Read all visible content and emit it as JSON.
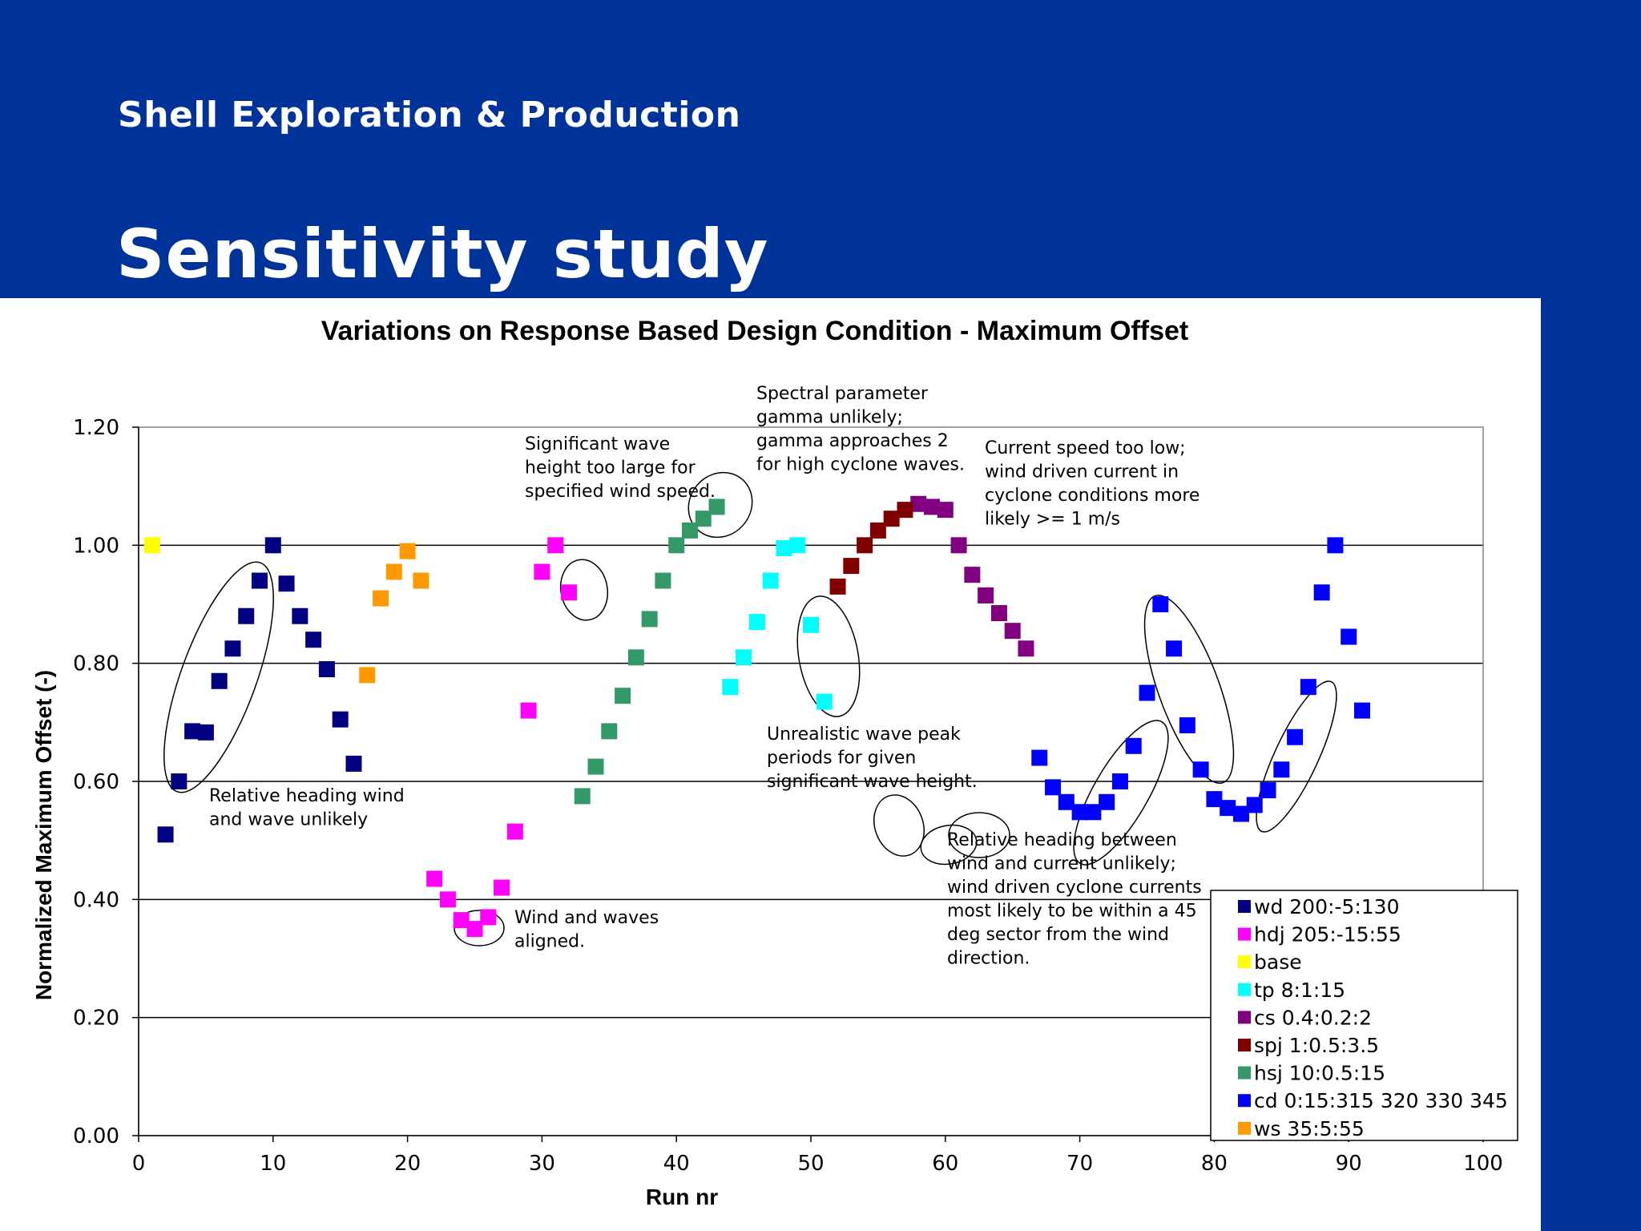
{
  "header": {
    "brand": "Shell Exploration & Production",
    "title": "Sensitivity study"
  },
  "chart_data": {
    "type": "scatter",
    "title": "Variations on Response Based Design Condition - Maximum Offset",
    "xlabel": "Run nr",
    "ylabel": "Normalized Maximum Offset (-)",
    "xlim": [
      0,
      100
    ],
    "ylim": [
      0,
      1.2
    ],
    "x_ticks": [
      "0",
      "10",
      "20",
      "30",
      "40",
      "50",
      "60",
      "70",
      "80",
      "90",
      "100"
    ],
    "y_ticks": [
      "0.00",
      "0.20",
      "0.40",
      "0.60",
      "0.80",
      "1.00",
      "1.20"
    ],
    "grid": "horizontal",
    "legend_position": "bottom-right",
    "series": [
      {
        "name": "wd 200:-5:130",
        "color": "#000080",
        "points": [
          [
            2,
            0.51
          ],
          [
            3,
            0.6
          ],
          [
            4,
            0.685
          ],
          [
            5,
            0.683
          ],
          [
            6,
            0.77
          ],
          [
            7,
            0.825
          ],
          [
            8,
            0.88
          ],
          [
            9,
            0.94
          ],
          [
            10,
            1.0
          ],
          [
            11,
            0.935
          ],
          [
            12,
            0.88
          ],
          [
            13,
            0.84
          ],
          [
            14,
            0.79
          ],
          [
            15,
            0.705
          ],
          [
            16,
            0.63
          ]
        ]
      },
      {
        "name": "hdj 205:-15:55",
        "color": "#ff00ff",
        "points": [
          [
            22,
            0.435
          ],
          [
            23,
            0.4
          ],
          [
            24,
            0.365
          ],
          [
            25,
            0.35
          ],
          [
            26,
            0.37
          ],
          [
            27,
            0.42
          ],
          [
            28,
            0.515
          ],
          [
            29,
            0.72
          ],
          [
            30,
            0.955
          ],
          [
            31,
            1.0
          ],
          [
            32,
            0.92
          ]
        ]
      },
      {
        "name": "base",
        "color": "#ffff00",
        "points": [
          [
            1,
            1.0
          ]
        ]
      },
      {
        "name": "tp 8:1:15",
        "color": "#00ffff",
        "points": [
          [
            44,
            0.76
          ],
          [
            45,
            0.81
          ],
          [
            46,
            0.87
          ],
          [
            47,
            0.94
          ],
          [
            48,
            0.995
          ],
          [
            49,
            1.0
          ],
          [
            50,
            0.865
          ],
          [
            51,
            0.735
          ]
        ]
      },
      {
        "name": "cs 0.4:0.2:2",
        "color": "#800080",
        "points": [
          [
            58,
            1.07
          ],
          [
            59,
            1.065
          ],
          [
            60,
            1.06
          ],
          [
            61,
            1.0
          ],
          [
            62,
            0.95
          ],
          [
            63,
            0.915
          ],
          [
            64,
            0.885
          ],
          [
            65,
            0.855
          ],
          [
            66,
            0.825
          ]
        ]
      },
      {
        "name": "spj 1:0.5:3.5",
        "color": "#800000",
        "points": [
          [
            52,
            0.93
          ],
          [
            53,
            0.965
          ],
          [
            54,
            1.0
          ],
          [
            55,
            1.025
          ],
          [
            56,
            1.045
          ],
          [
            57,
            1.06
          ]
        ]
      },
      {
        "name": "hsj 10:0.5:15",
        "color": "#339966",
        "points": [
          [
            33,
            0.575
          ],
          [
            34,
            0.625
          ],
          [
            35,
            0.685
          ],
          [
            36,
            0.745
          ],
          [
            37,
            0.81
          ],
          [
            38,
            0.875
          ],
          [
            39,
            0.94
          ],
          [
            40,
            1.0
          ],
          [
            41,
            1.025
          ],
          [
            42,
            1.045
          ],
          [
            43,
            1.065
          ]
        ]
      },
      {
        "name": "cd 0:15:315 320 330 345",
        "color": "#0000ff",
        "points": [
          [
            67,
            0.64
          ],
          [
            68,
            0.59
          ],
          [
            69,
            0.565
          ],
          [
            70,
            0.548
          ],
          [
            71,
            0.548
          ],
          [
            72,
            0.565
          ],
          [
            73,
            0.6
          ],
          [
            74,
            0.66
          ],
          [
            75,
            0.75
          ],
          [
            76,
            0.9
          ],
          [
            77,
            0.825
          ],
          [
            78,
            0.695
          ],
          [
            79,
            0.62
          ],
          [
            80,
            0.57
          ],
          [
            81,
            0.555
          ],
          [
            82,
            0.545
          ],
          [
            83,
            0.56
          ],
          [
            84,
            0.585
          ],
          [
            85,
            0.62
          ],
          [
            86,
            0.675
          ],
          [
            87,
            0.76
          ],
          [
            88,
            0.92
          ],
          [
            89,
            1.0
          ],
          [
            90,
            0.845
          ],
          [
            91,
            0.72
          ]
        ]
      },
      {
        "name": "ws 35:5:55",
        "color": "#ff9900",
        "points": [
          [
            17,
            0.78
          ],
          [
            18,
            0.91
          ],
          [
            19,
            0.955
          ],
          [
            20,
            0.99
          ],
          [
            21,
            0.94
          ]
        ]
      }
    ],
    "annotations": [
      {
        "lines": [
          "Relative heading wind",
          "and wave unlikely"
        ]
      },
      {
        "lines": [
          "Wind and waves",
          "aligned."
        ]
      },
      {
        "lines": [
          "Significant wave",
          "height too large for",
          "specified wind speed."
        ]
      },
      {
        "lines": [
          "Spectral parameter",
          "gamma unlikely;",
          "gamma approaches 2",
          "for high cyclone waves."
        ]
      },
      {
        "lines": [
          "Current speed too low;",
          "wind driven current in",
          "cyclone conditions more",
          "likely >= 1 m/s"
        ]
      },
      {
        "lines": [
          "Unrealistic wave peak",
          "periods for given",
          "significant wave height."
        ]
      },
      {
        "lines": [
          "Relative heading between",
          "wind and current unlikely;",
          "wind driven cyclone currents",
          "most likely to be within a 45",
          "deg sector from the wind",
          "direction."
        ]
      }
    ]
  }
}
